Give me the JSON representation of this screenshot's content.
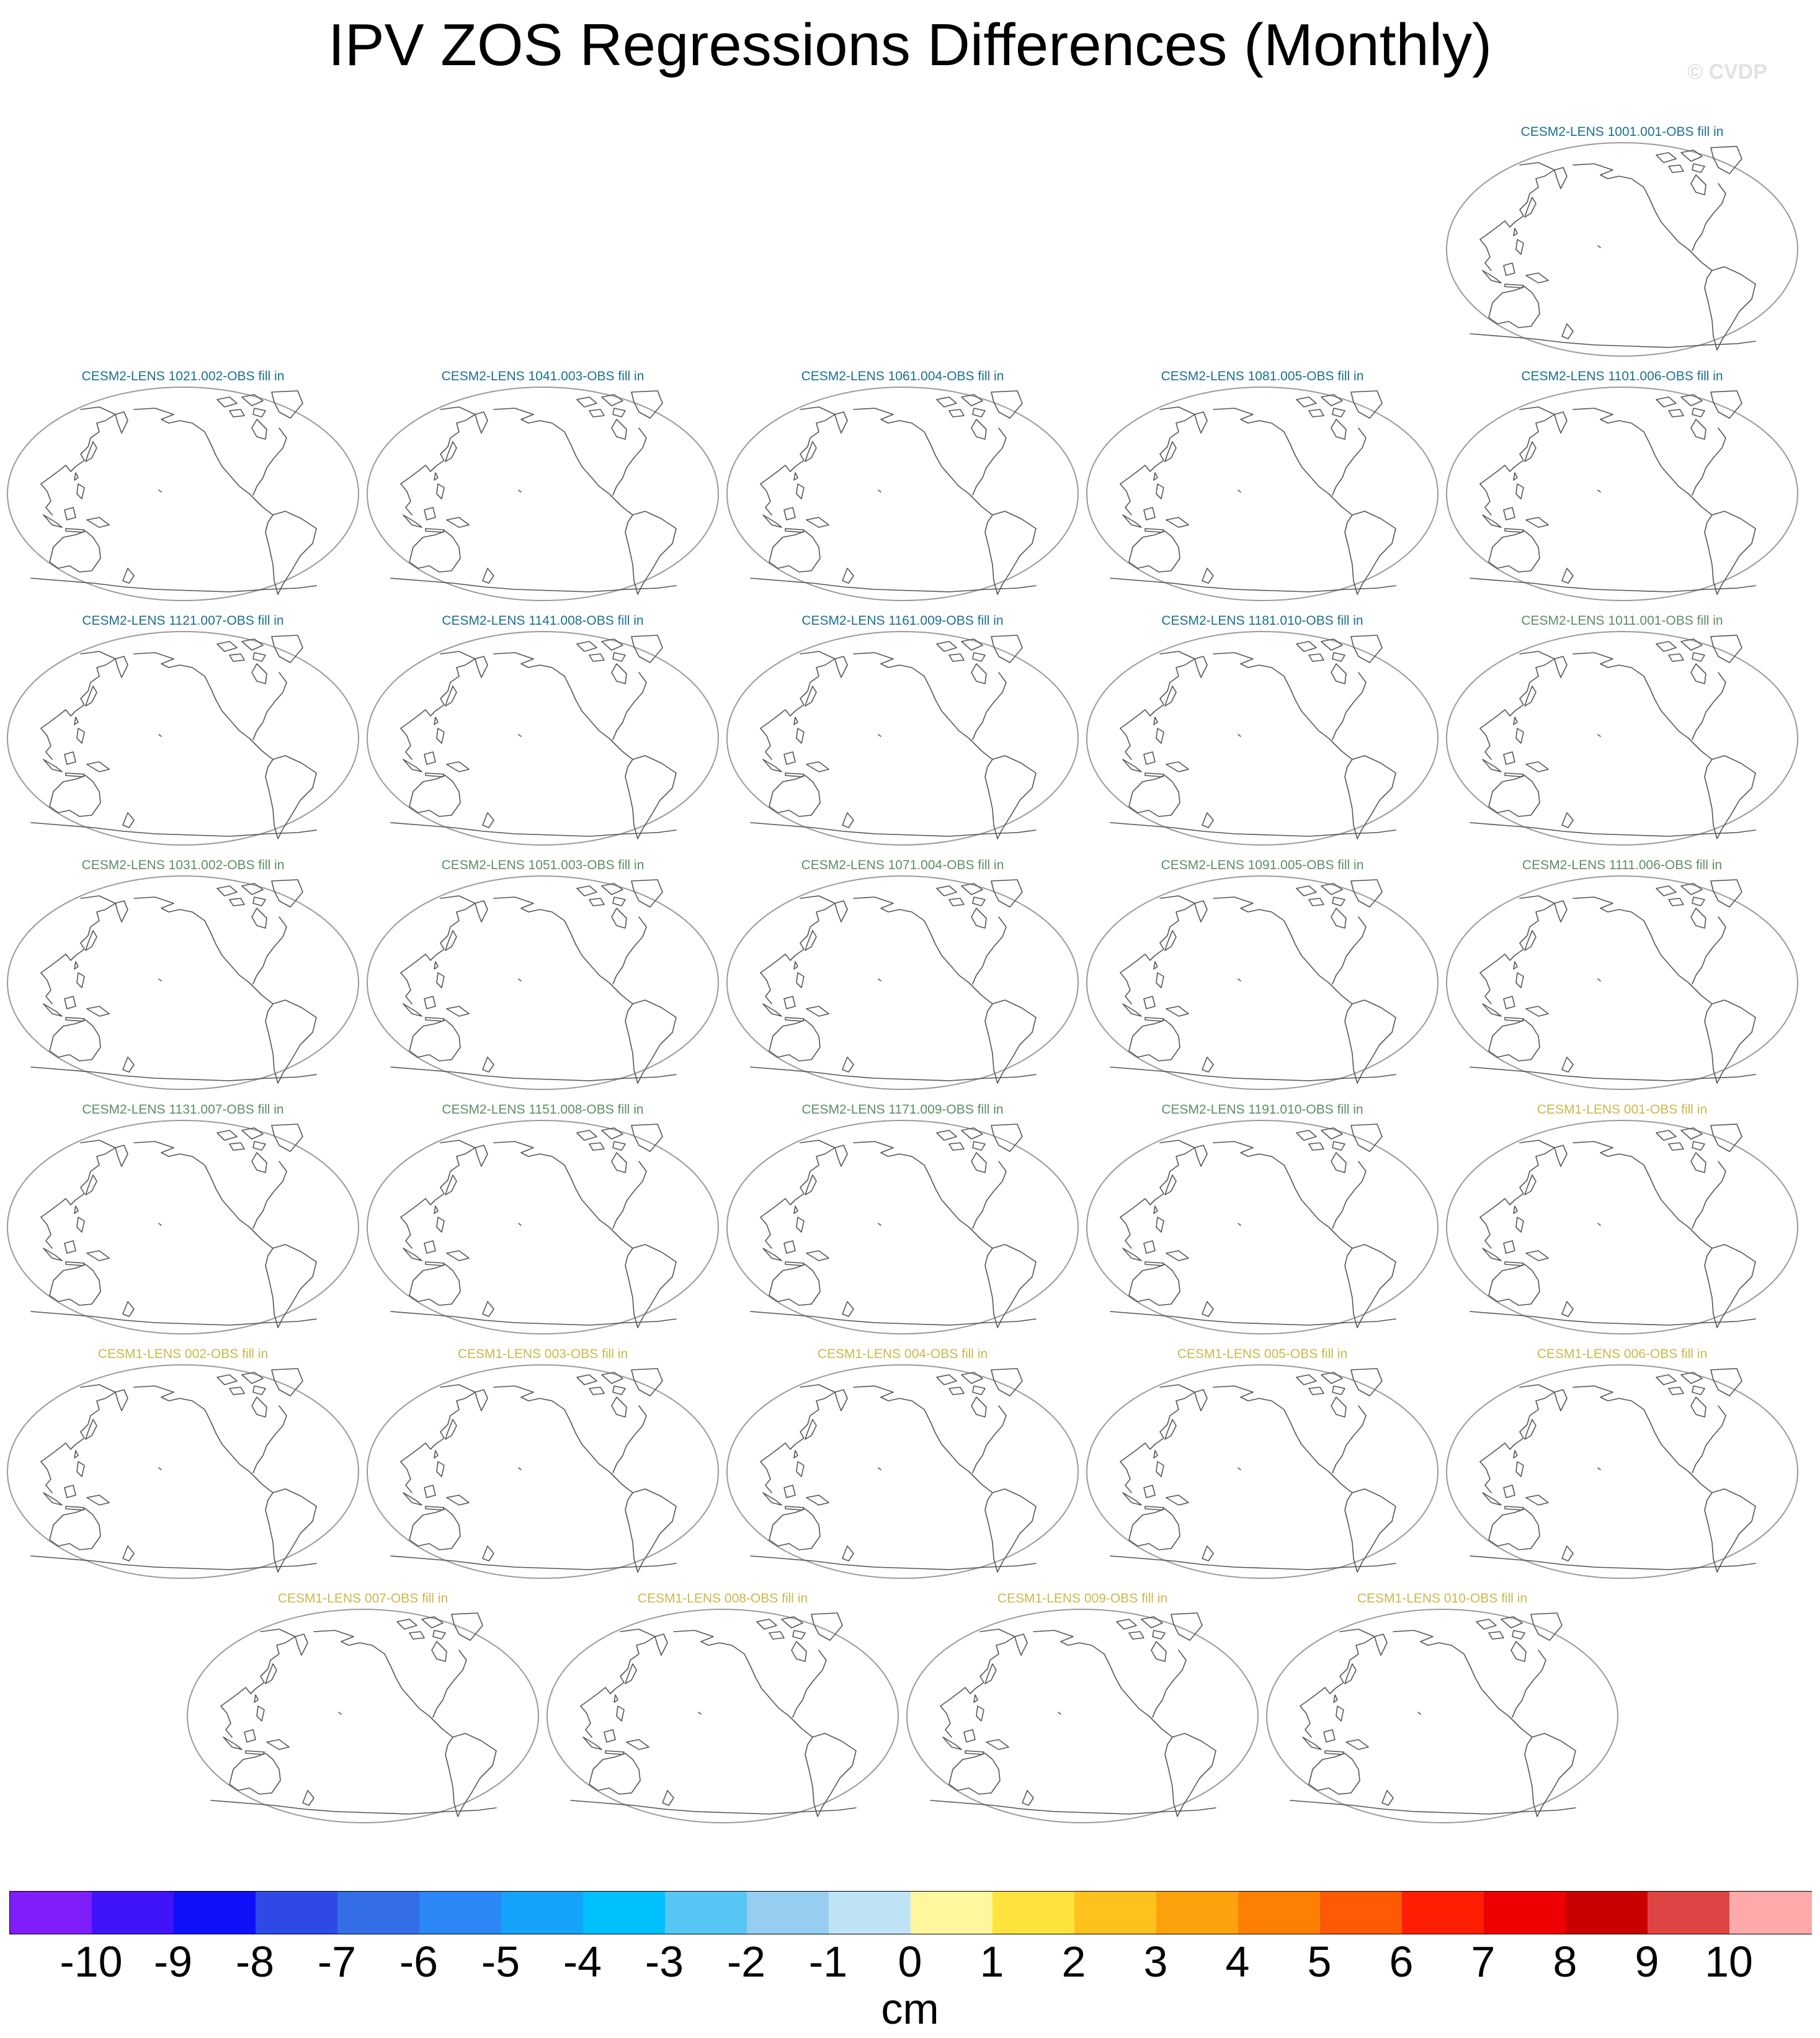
{
  "title": "IPV ZOS Regressions Differences (Monthly)",
  "watermark": "© CVDP",
  "map_icon": "world-map-icon",
  "panels": [
    {
      "label": "CESM2-LENS 1001.001-OBS fill in",
      "color": "#1b6f8e"
    },
    {
      "label": "CESM2-LENS 1021.002-OBS fill in",
      "color": "#1b6f8e"
    },
    {
      "label": "CESM2-LENS 1041.003-OBS fill in",
      "color": "#1b6f8e"
    },
    {
      "label": "CESM2-LENS 1061.004-OBS fill in",
      "color": "#1b6f8e"
    },
    {
      "label": "CESM2-LENS 1081.005-OBS fill in",
      "color": "#1b6f8e"
    },
    {
      "label": "CESM2-LENS 1101.006-OBS fill in",
      "color": "#1b6f8e"
    },
    {
      "label": "CESM2-LENS 1121.007-OBS fill in",
      "color": "#1b6f8e"
    },
    {
      "label": "CESM2-LENS 1141.008-OBS fill in",
      "color": "#1b6f8e"
    },
    {
      "label": "CESM2-LENS 1161.009-OBS fill in",
      "color": "#1b6f8e"
    },
    {
      "label": "CESM2-LENS 1181.010-OBS fill in",
      "color": "#1b6f8e"
    },
    {
      "label": "CESM2-LENS 1011.001-OBS fill in",
      "color": "#5e8c66"
    },
    {
      "label": "CESM2-LENS 1031.002-OBS fill in",
      "color": "#5e8c66"
    },
    {
      "label": "CESM2-LENS 1051.003-OBS fill in",
      "color": "#5e8c66"
    },
    {
      "label": "CESM2-LENS 1071.004-OBS fill in",
      "color": "#5e8c66"
    },
    {
      "label": "CESM2-LENS 1091.005-OBS fill in",
      "color": "#5e8c66"
    },
    {
      "label": "CESM2-LENS 1111.006-OBS fill in",
      "color": "#5e8c66"
    },
    {
      "label": "CESM2-LENS 1131.007-OBS fill in",
      "color": "#5e8c66"
    },
    {
      "label": "CESM2-LENS 1151.008-OBS fill in",
      "color": "#5e8c66"
    },
    {
      "label": "CESM2-LENS 1171.009-OBS fill in",
      "color": "#5e8c66"
    },
    {
      "label": "CESM2-LENS 1191.010-OBS fill in",
      "color": "#5e8c66"
    },
    {
      "label": "CESM1-LENS 001-OBS fill in",
      "color": "#c9b94c"
    },
    {
      "label": "CESM1-LENS 002-OBS fill in",
      "color": "#c9b94c"
    },
    {
      "label": "CESM1-LENS 003-OBS fill in",
      "color": "#c9b94c"
    },
    {
      "label": "CESM1-LENS 004-OBS fill in",
      "color": "#c9b94c"
    },
    {
      "label": "CESM1-LENS 005-OBS fill in",
      "color": "#c9b94c"
    },
    {
      "label": "CESM1-LENS 006-OBS fill in",
      "color": "#c9b94c"
    },
    {
      "label": "CESM1-LENS 007-OBS fill in",
      "color": "#c9b94c"
    },
    {
      "label": "CESM1-LENS 008-OBS fill in",
      "color": "#c9b94c"
    },
    {
      "label": "CESM1-LENS 009-OBS fill in",
      "color": "#c9b94c"
    },
    {
      "label": "CESM1-LENS 010-OBS fill in",
      "color": "#c9b94c"
    }
  ],
  "colorbar": {
    "units": "cm",
    "tick_labels": [
      "-10",
      "-9",
      "-8",
      "-7",
      "-6",
      "-5",
      "-4",
      "-3",
      "-2",
      "-1",
      "0",
      "1",
      "2",
      "3",
      "4",
      "5",
      "6",
      "7",
      "8",
      "9",
      "10"
    ],
    "colors": [
      "#7f1dfb",
      "#4014fb",
      "#0f0ff8",
      "#2f49e6",
      "#336ee6",
      "#2a87f5",
      "#15a2fa",
      "#00c0fb",
      "#56c6f5",
      "#97cdee",
      "#bde3f5",
      "#fff79e",
      "#fee33c",
      "#fdc21c",
      "#fca20d",
      "#fd8004",
      "#fe5a06",
      "#fe1f03",
      "#ee0000",
      "#c80000",
      "#de4444",
      "#ffaaaa"
    ]
  }
}
